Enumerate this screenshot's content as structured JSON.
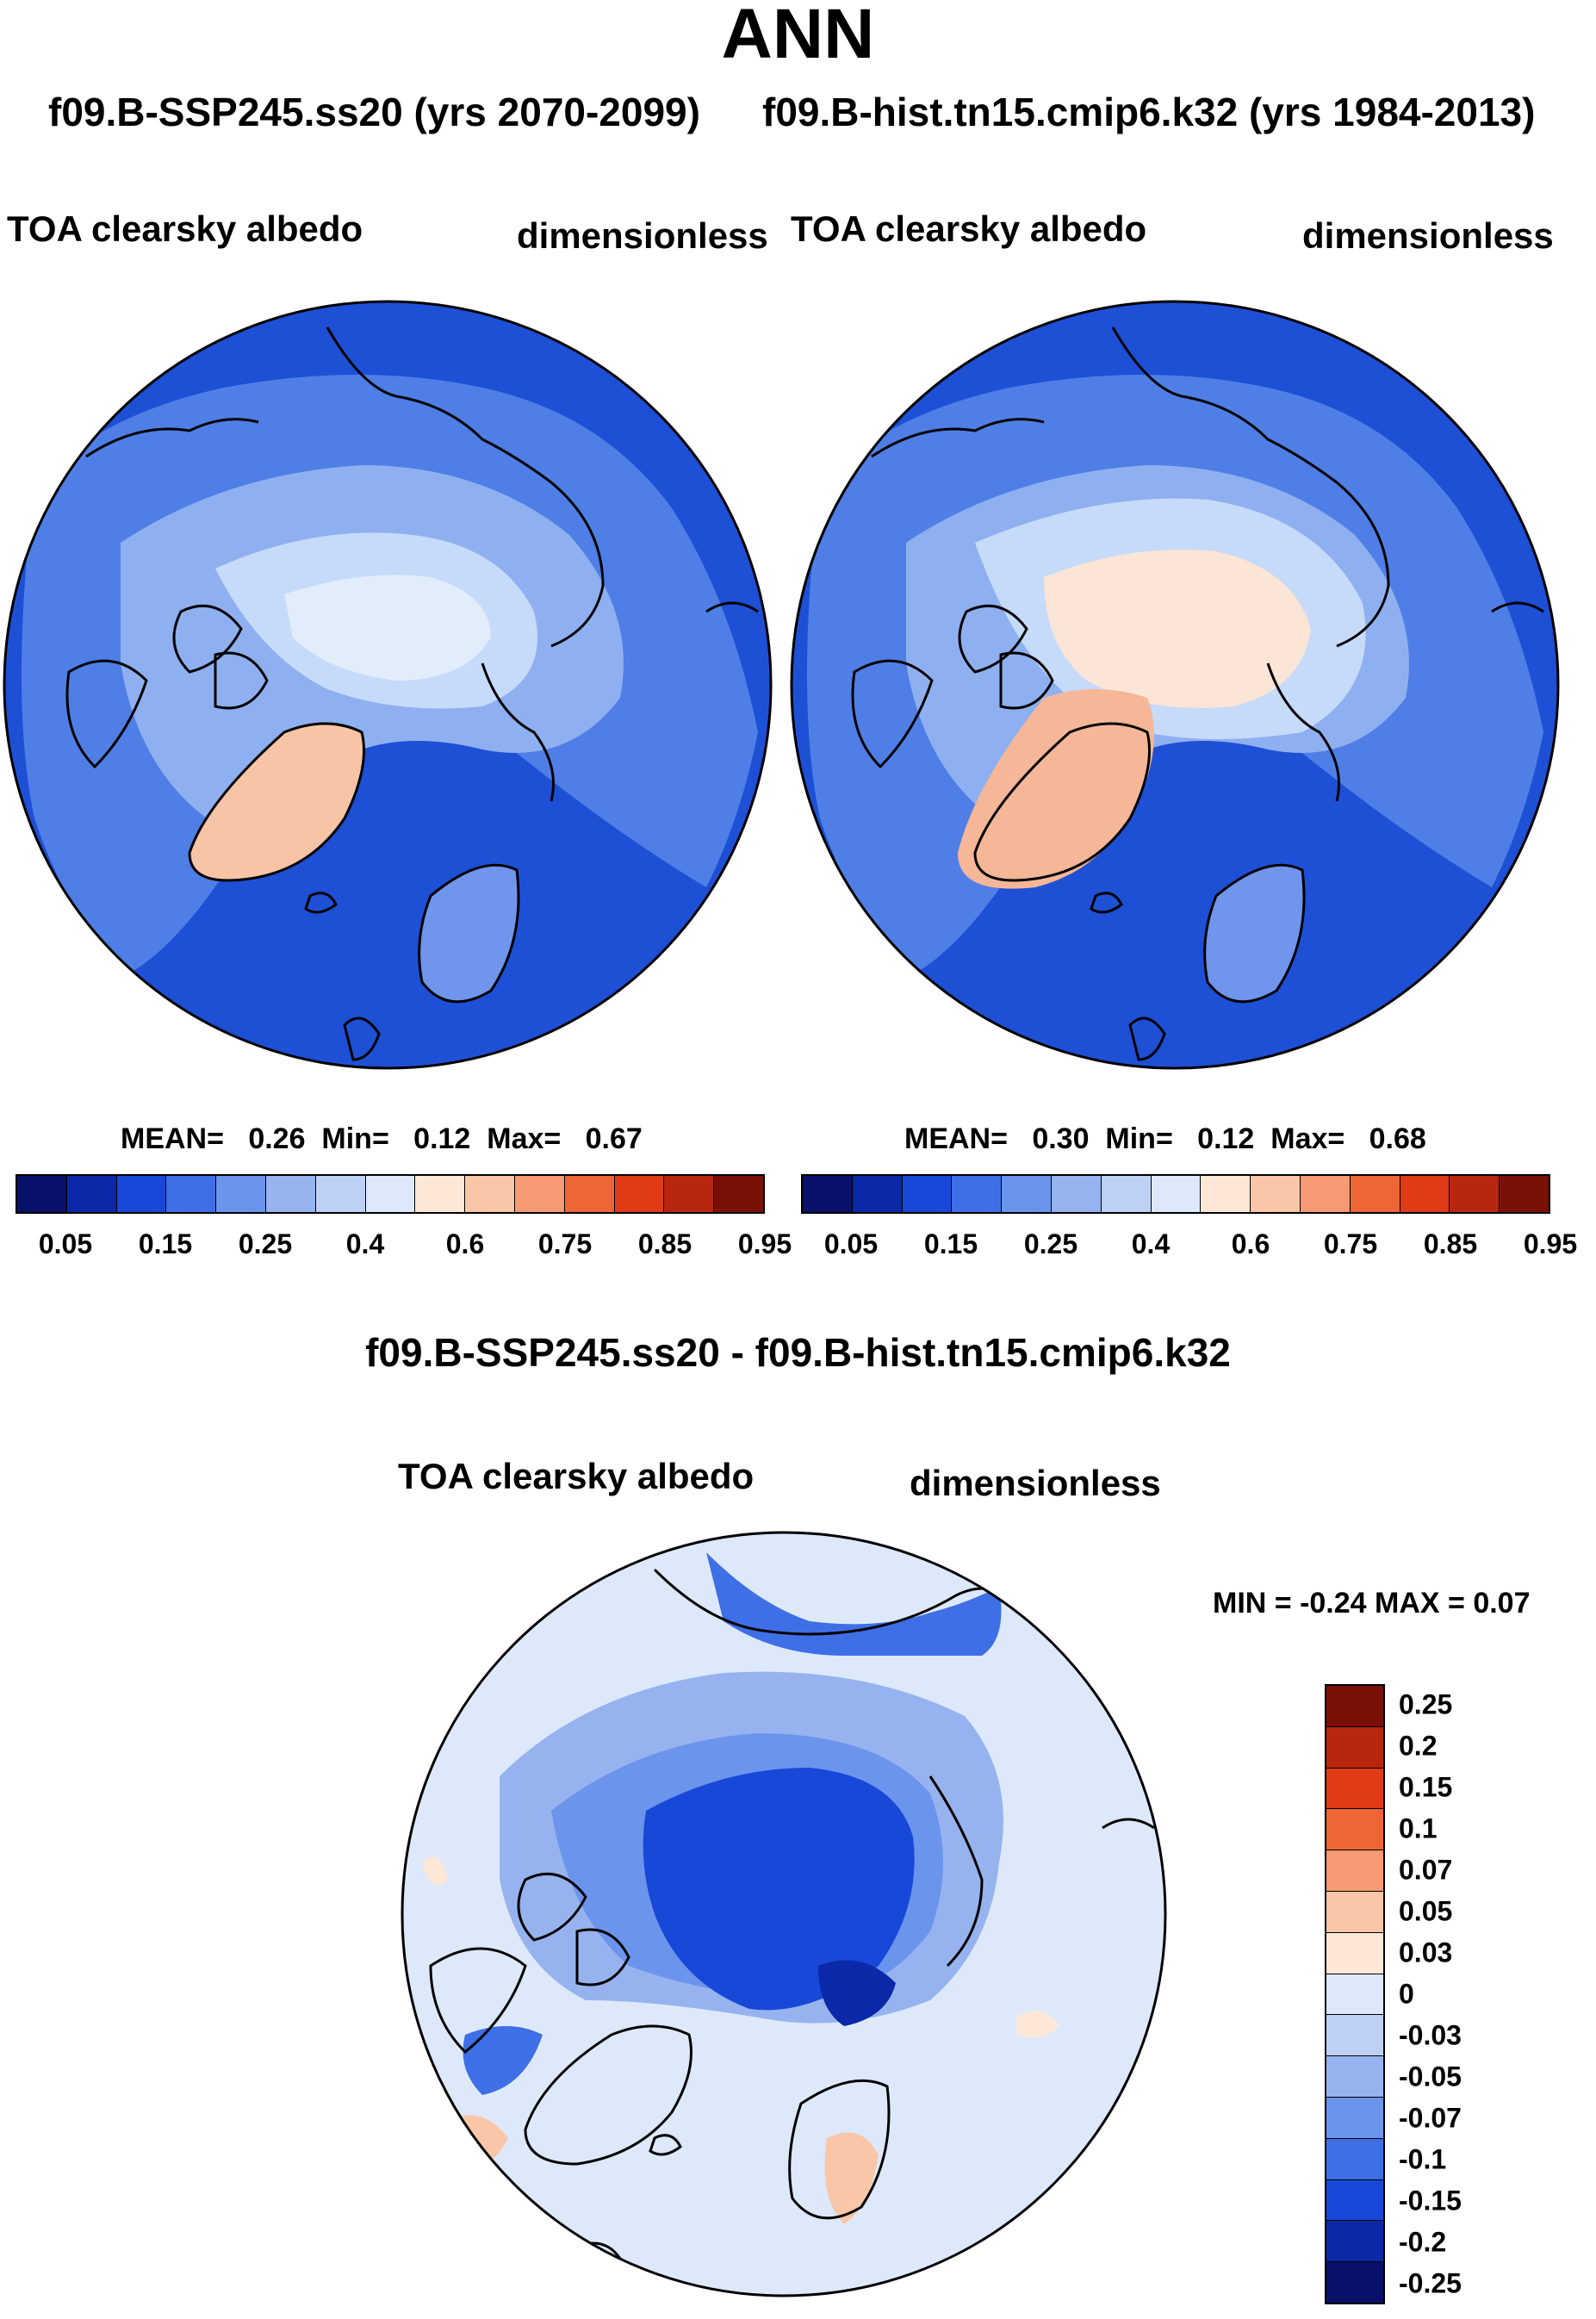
{
  "title": "ANN",
  "experiments": {
    "left": "f09.B-SSP245.ss20 (yrs 2070-2099)",
    "right": "f09.B-hist.tn15.cmip6.k32 (yrs 1984-2013)"
  },
  "panels": [
    {
      "variable": "TOA clearsky albedo",
      "units": "dimensionless",
      "stats": {
        "mean_label": "MEAN=",
        "mean": "0.26",
        "min_label": "Min=",
        "min": "0.12",
        "max_label": "Max=",
        "max": "0.67"
      }
    },
    {
      "variable": "TOA clearsky albedo",
      "units": "dimensionless",
      "stats": {
        "mean_label": "MEAN=",
        "mean": "0.30",
        "min_label": "Min=",
        "min": "0.12",
        "max_label": "Max=",
        "max": "0.68"
      }
    }
  ],
  "colorbar": {
    "colors": [
      "#08106a",
      "#0a28a8",
      "#1848d8",
      "#3e6fe6",
      "#6b94ec",
      "#97b3ef",
      "#bed1f5",
      "#dde9fb",
      "#fde8d8",
      "#f9c6a8",
      "#f59a73",
      "#ee6635",
      "#e03b16",
      "#b8260d",
      "#7a1006"
    ],
    "ticks": [
      "0.05",
      "0.15",
      "0.25",
      "0.4",
      "0.6",
      "0.75",
      "0.85",
      "0.95"
    ]
  },
  "difference": {
    "title": "f09.B-SSP245.ss20 - f09.B-hist.tn15.cmip6.k32",
    "variable": "TOA clearsky albedo",
    "units": "dimensionless",
    "minmax": "MIN =  -0.24 MAX =   0.07",
    "colorbar": {
      "colors": [
        "#7a1006",
        "#b8260d",
        "#e03b16",
        "#ee6635",
        "#f59a73",
        "#f9c6a8",
        "#fde8d8",
        "#dde9fb",
        "#bed1f5",
        "#97b3ef",
        "#6b94ec",
        "#3e6fe6",
        "#1848d8",
        "#0a28a8",
        "#08106a"
      ],
      "ticks": [
        "0.25",
        "0.2",
        "0.15",
        "0.1",
        "0.07",
        "0.05",
        "0.03",
        "0",
        "-0.03",
        "-0.05",
        "-0.07",
        "-0.1",
        "-0.15",
        "-0.2",
        "-0.25"
      ]
    }
  }
}
